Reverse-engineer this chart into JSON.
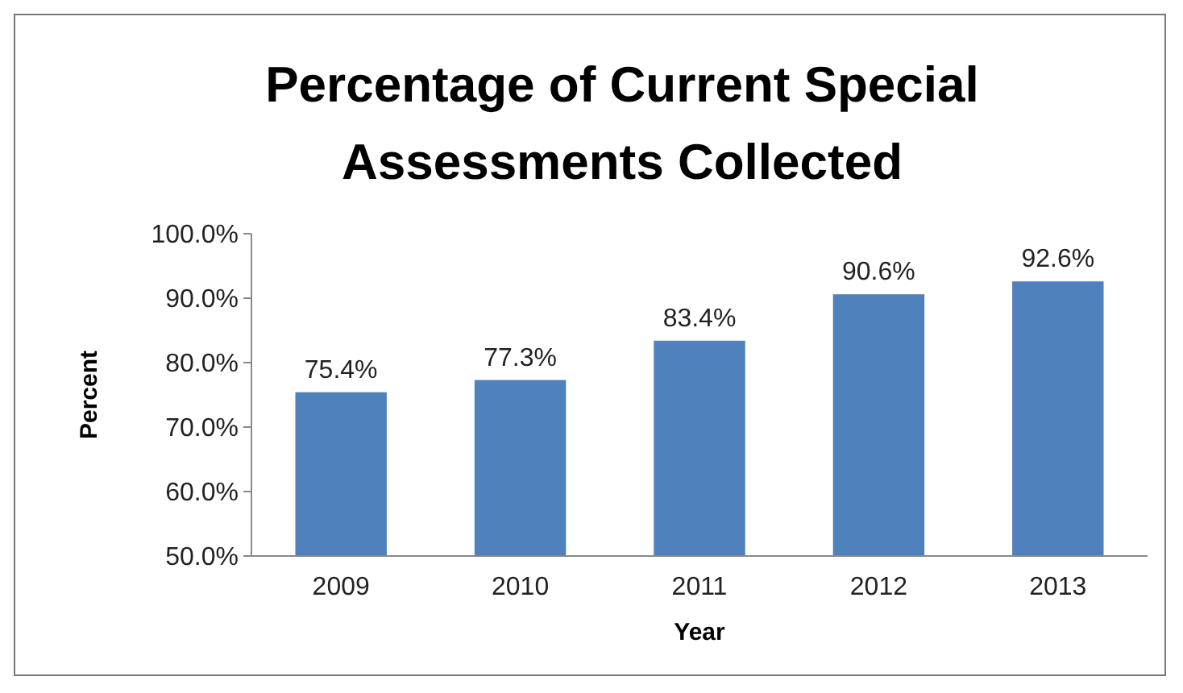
{
  "chart_data": {
    "type": "bar",
    "title": "Percentage of Current Special Assessments Collected",
    "xlabel": "Year",
    "ylabel": "Percent",
    "categories": [
      "2009",
      "2010",
      "2011",
      "2012",
      "2013"
    ],
    "values": [
      75.4,
      77.3,
      83.4,
      90.6,
      92.6
    ],
    "value_labels": [
      "75.4%",
      "77.3%",
      "83.4%",
      "90.6%",
      "92.6%"
    ],
    "color": "#4f81bd",
    "ylim": [
      50,
      100
    ],
    "yticks": [
      {
        "value": 50,
        "label": "50.0%"
      },
      {
        "value": 60,
        "label": "60.0%"
      },
      {
        "value": 70,
        "label": "70.0%"
      },
      {
        "value": 80,
        "label": "80.0%"
      },
      {
        "value": 90,
        "label": "90.0%"
      },
      {
        "value": 100,
        "label": "100.0%"
      }
    ],
    "grid": false
  }
}
